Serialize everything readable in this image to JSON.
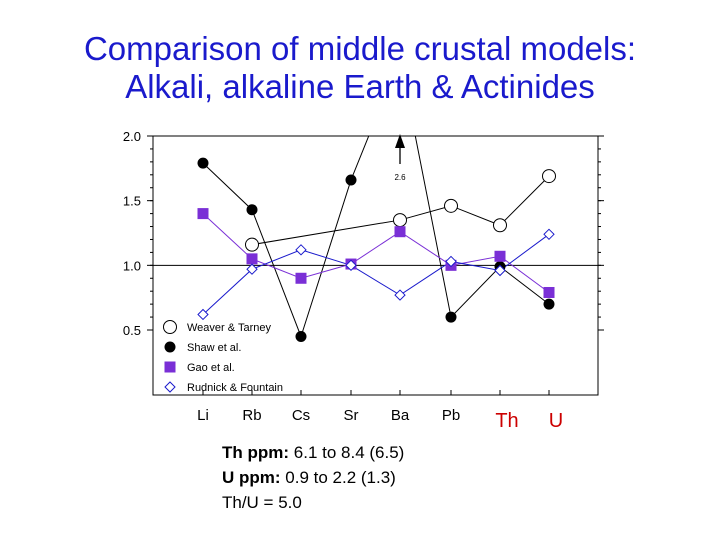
{
  "title": {
    "line1": "Comparison of middle crustal models:",
    "line2": "Alkali, alkaline Earth & Actinides"
  },
  "chart_data": {
    "type": "line",
    "categories": [
      "Li",
      "Rb",
      "Cs",
      "Sr",
      "Ba",
      "Pb",
      "Th",
      "U"
    ],
    "ylim": [
      0.5,
      2.0
    ],
    "yticks": [
      "2.0",
      "1.5",
      "1.0",
      "0.5"
    ],
    "reference_line": 1.0,
    "grid": false,
    "legend_position": "bottom-left",
    "series": [
      {
        "name": "Weaver & Tarney",
        "marker": "circle-open",
        "color": "#000000",
        "values": [
          null,
          1.16,
          null,
          null,
          1.35,
          1.46,
          1.31,
          1.69
        ]
      },
      {
        "name": "Shaw et al.",
        "marker": "circle-filled",
        "color": "#000000",
        "values": [
          1.79,
          1.43,
          0.45,
          1.66,
          2.6,
          0.6,
          0.99,
          0.7
        ]
      },
      {
        "name": "Gao et al.",
        "marker": "square-filled",
        "color": "#7a2fd6",
        "values": [
          1.4,
          1.05,
          0.9,
          1.01,
          1.26,
          1.0,
          1.07,
          0.79
        ]
      },
      {
        "name": "Rudnick & Fountain",
        "marker": "diamond-open",
        "color": "#1a1acc",
        "values": [
          0.62,
          0.97,
          1.12,
          1.0,
          0.77,
          1.03,
          0.96,
          1.24
        ]
      }
    ],
    "annotations": [
      {
        "text": "2.6",
        "category": "Ba"
      }
    ],
    "highlight_categories": [
      "Th",
      "U"
    ],
    "highlight_color": "#cc0000"
  },
  "notes": {
    "th_label": "Th ppm:",
    "th_value": " 6.1 to 8.4 (6.5)",
    "u_label": "U ppm:",
    "u_value": " 0.9 to 2.2 (1.3)",
    "ratio": "Th/U = 5.0"
  }
}
